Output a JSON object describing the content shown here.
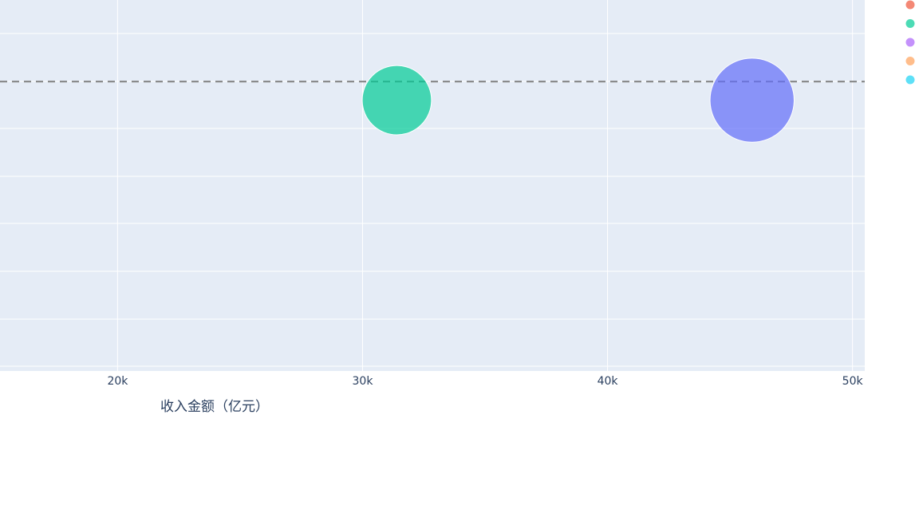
{
  "chart_data": {
    "type": "scatter",
    "title": "",
    "xlabel": "收入金额（亿元）",
    "ylabel": "",
    "xlim": [
      15200,
      50500
    ],
    "ylim": [
      0,
      1
    ],
    "x_tick_values": [
      20000,
      30000,
      40000,
      50000
    ],
    "x_tick_labels": [
      "20k",
      "30k",
      "40k",
      "50k"
    ],
    "grid": true,
    "legend_position": "right",
    "background_color": "#E5ECF6",
    "reference_line": {
      "y": 0.78,
      "style": "dashed",
      "color": "#808080"
    },
    "series": [
      {
        "color": "#EF553B",
        "points": []
      },
      {
        "color": "#00CC96",
        "points": [
          {
            "x": 31400,
            "y": 0.73,
            "size": 28
          }
        ]
      },
      {
        "color": "#AB63FA",
        "points": []
      },
      {
        "color": "#FFA15A",
        "points": []
      },
      {
        "color": "#19D3F3",
        "points": []
      }
    ],
    "extra_points": [
      {
        "x": 45900,
        "y": 0.73,
        "size": 34,
        "color": "#636EFA"
      }
    ]
  }
}
